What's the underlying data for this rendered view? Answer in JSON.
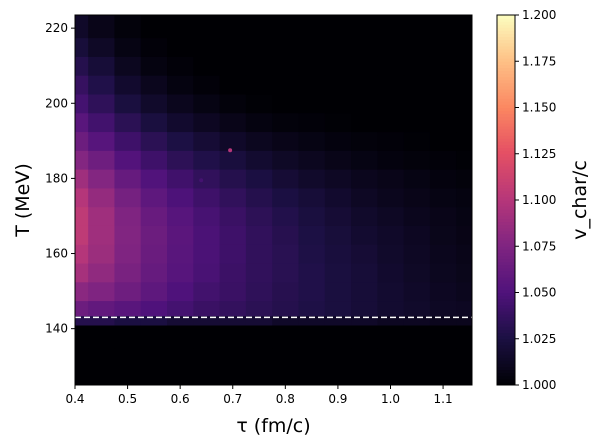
{
  "chart_data": {
    "type": "heatmap",
    "xlabel": "τ (fm/c)",
    "ylabel": "T (MeV)",
    "colorbar_label": "v_char/c",
    "colormap": "magma",
    "xlim": [
      0.4,
      1.155
    ],
    "ylim": [
      125,
      223.5
    ],
    "xticks": [
      "0.4",
      "0.5",
      "0.6",
      "0.7",
      "0.8",
      "0.9",
      "1.0",
      "1.1"
    ],
    "xtick_values": [
      0.4,
      0.5,
      0.6,
      0.7,
      0.8,
      0.9,
      1.0,
      1.1
    ],
    "yticks": [
      "140",
      "160",
      "180",
      "200",
      "220"
    ],
    "ytick_values": [
      140,
      160,
      180,
      200,
      220
    ],
    "colorbar_range": [
      1.0,
      1.2
    ],
    "colorbar_ticks": [
      "1.000",
      "1.025",
      "1.050",
      "1.075",
      "1.100",
      "1.125",
      "1.150",
      "1.175",
      "1.200"
    ],
    "colorbar_tick_values": [
      1.0,
      1.025,
      1.05,
      1.075,
      1.1,
      1.125,
      1.15,
      1.175,
      1.2
    ],
    "reference_line": {
      "y": 143,
      "style": "dashed",
      "color": "#ffffff"
    },
    "z_grid": {
      "x": [
        0.4,
        0.45,
        0.5,
        0.55,
        0.6,
        0.65,
        0.7,
        0.75,
        0.8,
        0.85,
        0.9,
        0.95,
        1.0,
        1.05,
        1.1,
        1.15
      ],
      "y": [
        130,
        140,
        142,
        145,
        150,
        155,
        160,
        165,
        170,
        175,
        180,
        185,
        190,
        195,
        200,
        205,
        210,
        215,
        220
      ],
      "values": [
        [
          1.0,
          1.0,
          1.0,
          1.0,
          1.0,
          1.0,
          1.0,
          1.0,
          1.0,
          1.0,
          1.0,
          1.0,
          1.0,
          1.0,
          1.0,
          1.0
        ],
        [
          1.0,
          1.0,
          1.0,
          1.0,
          1.0,
          1.0,
          1.0,
          1.0,
          1.0,
          1.0,
          1.0,
          1.0,
          1.0,
          1.0,
          1.0,
          1.0
        ],
        [
          1.03,
          1.03,
          1.025,
          1.025,
          1.02,
          1.02,
          1.02,
          1.02,
          1.015,
          1.015,
          1.015,
          1.015,
          1.012,
          1.012,
          1.01,
          1.01
        ],
        [
          1.065,
          1.06,
          1.055,
          1.05,
          1.045,
          1.04,
          1.037,
          1.033,
          1.03,
          1.027,
          1.024,
          1.021,
          1.018,
          1.016,
          1.013,
          1.012
        ],
        [
          1.08,
          1.075,
          1.066,
          1.058,
          1.05,
          1.044,
          1.04,
          1.035,
          1.031,
          1.028,
          1.024,
          1.021,
          1.018,
          1.015,
          1.012,
          1.01
        ],
        [
          1.093,
          1.083,
          1.072,
          1.062,
          1.054,
          1.047,
          1.041,
          1.036,
          1.032,
          1.028,
          1.024,
          1.021,
          1.017,
          1.014,
          1.011,
          1.009
        ],
        [
          1.1,
          1.088,
          1.075,
          1.064,
          1.055,
          1.048,
          1.042,
          1.036,
          1.032,
          1.027,
          1.023,
          1.02,
          1.016,
          1.013,
          1.01,
          1.008
        ],
        [
          1.105,
          1.09,
          1.076,
          1.065,
          1.056,
          1.048,
          1.042,
          1.036,
          1.031,
          1.026,
          1.022,
          1.018,
          1.015,
          1.012,
          1.009,
          1.007
        ],
        [
          1.105,
          1.09,
          1.075,
          1.063,
          1.054,
          1.046,
          1.04,
          1.034,
          1.029,
          1.024,
          1.02,
          1.016,
          1.013,
          1.01,
          1.008,
          1.006
        ],
        [
          1.1,
          1.085,
          1.07,
          1.058,
          1.049,
          1.042,
          1.036,
          1.03,
          1.025,
          1.021,
          1.017,
          1.013,
          1.01,
          1.008,
          1.006,
          1.005
        ],
        [
          1.09,
          1.077,
          1.062,
          1.051,
          1.043,
          1.036,
          1.03,
          1.025,
          1.02,
          1.016,
          1.013,
          1.01,
          1.008,
          1.006,
          1.004,
          1.003
        ],
        [
          1.077,
          1.066,
          1.052,
          1.042,
          1.034,
          1.028,
          1.023,
          1.018,
          1.014,
          1.011,
          1.008,
          1.006,
          1.004,
          1.003,
          1.002,
          1.001
        ],
        [
          1.065,
          1.054,
          1.042,
          1.033,
          1.026,
          1.02,
          1.015,
          1.011,
          1.008,
          1.006,
          1.004,
          1.003,
          1.002,
          1.001,
          1.0,
          1.0
        ],
        [
          1.055,
          1.044,
          1.033,
          1.024,
          1.017,
          1.012,
          1.008,
          1.005,
          1.003,
          1.002,
          1.001,
          1.0,
          1.0,
          1.0,
          1.0,
          1.0
        ],
        [
          1.045,
          1.035,
          1.024,
          1.016,
          1.01,
          1.006,
          1.003,
          1.001,
          1.0,
          1.0,
          1.0,
          1.0,
          1.0,
          1.0,
          1.0,
          1.0
        ],
        [
          1.038,
          1.028,
          1.017,
          1.01,
          1.005,
          1.002,
          1.0,
          1.0,
          1.0,
          1.0,
          1.0,
          1.0,
          1.0,
          1.0,
          1.0,
          1.0
        ],
        [
          1.03,
          1.021,
          1.011,
          1.005,
          1.002,
          1.0,
          1.0,
          1.0,
          1.0,
          1.0,
          1.0,
          1.0,
          1.0,
          1.0,
          1.0,
          1.0
        ],
        [
          1.022,
          1.014,
          1.006,
          1.002,
          1.0,
          1.0,
          1.0,
          1.0,
          1.0,
          1.0,
          1.0,
          1.0,
          1.0,
          1.0,
          1.0,
          1.0
        ],
        [
          1.015,
          1.008,
          1.003,
          1.0,
          1.0,
          1.0,
          1.0,
          1.0,
          1.0,
          1.0,
          1.0,
          1.0,
          1.0,
          1.0,
          1.0,
          1.0
        ]
      ]
    },
    "points": [
      {
        "x": 0.695,
        "y": 187.5,
        "value": 1.1
      },
      {
        "x": 0.64,
        "y": 179.5,
        "value": 1.045
      }
    ]
  }
}
